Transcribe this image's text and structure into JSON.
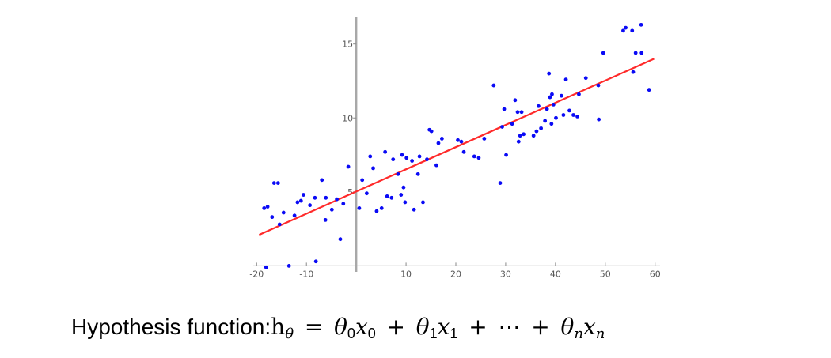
{
  "chart_data": {
    "type": "scatter",
    "title": "",
    "xlabel": "",
    "ylabel": "",
    "xlim": [
      -21,
      61
    ],
    "ylim": [
      -0.3,
      16.8
    ],
    "x_ticks": [
      {
        "value": -20,
        "label": "-20"
      },
      {
        "value": -10,
        "label": "-10"
      },
      {
        "value": 10,
        "label": "10"
      },
      {
        "value": 20,
        "label": "20"
      },
      {
        "value": 30,
        "label": "30"
      },
      {
        "value": 40,
        "label": "40"
      },
      {
        "value": 50,
        "label": "50"
      },
      {
        "value": 60,
        "label": "60"
      }
    ],
    "y_ticks": [
      {
        "value": 5,
        "label": "5"
      },
      {
        "value": 10,
        "label": "10"
      },
      {
        "value": 15,
        "label": "15"
      }
    ],
    "grid": false,
    "legend": "none",
    "series": [
      {
        "kind": "points",
        "color": "#0a0af5",
        "points": [
          [
            -18.5,
            3.9
          ],
          [
            -17.8,
            4.0
          ],
          [
            -16.9,
            3.3
          ],
          [
            -16.5,
            5.6
          ],
          [
            -15.7,
            5.6
          ],
          [
            -15.4,
            2.8
          ],
          [
            -14.6,
            3.6
          ],
          [
            -12.4,
            3.4
          ],
          [
            -11.8,
            4.3
          ],
          [
            -11.1,
            4.4
          ],
          [
            -10.6,
            4.8
          ],
          [
            -9.3,
            4.1
          ],
          [
            -8.3,
            4.6
          ],
          [
            -6.9,
            5.8
          ],
          [
            -6.1,
            4.6
          ],
          [
            -6.2,
            3.1
          ],
          [
            -4.9,
            3.8
          ],
          [
            -3.9,
            4.5
          ],
          [
            -3.2,
            1.8
          ],
          [
            -2.6,
            4.2
          ],
          [
            -1.6,
            6.7
          ],
          [
            -18.1,
            -0.1
          ],
          [
            -13.5,
            0.0
          ],
          [
            -8.1,
            0.3
          ],
          [
            0.6,
            3.9
          ],
          [
            1.2,
            5.8
          ],
          [
            2.1,
            4.9
          ],
          [
            2.8,
            7.4
          ],
          [
            3.4,
            6.6
          ],
          [
            4.1,
            3.7
          ],
          [
            5.1,
            3.9
          ],
          [
            5.8,
            7.7
          ],
          [
            6.2,
            4.7
          ],
          [
            7.1,
            4.6
          ],
          [
            7.4,
            7.2
          ],
          [
            8.4,
            6.2
          ],
          [
            9.0,
            4.8
          ],
          [
            9.2,
            7.5
          ],
          [
            9.5,
            5.3
          ],
          [
            9.8,
            4.3
          ],
          [
            10.1,
            7.3
          ],
          [
            11.2,
            7.1
          ],
          [
            11.6,
            3.8
          ],
          [
            12.4,
            6.2
          ],
          [
            12.7,
            7.4
          ],
          [
            13.4,
            4.3
          ],
          [
            14.2,
            7.2
          ],
          [
            14.7,
            9.2
          ],
          [
            15.1,
            9.1
          ],
          [
            16.1,
            6.8
          ],
          [
            16.5,
            8.3
          ],
          [
            17.2,
            8.6
          ],
          [
            20.4,
            8.5
          ],
          [
            21.1,
            8.4
          ],
          [
            21.6,
            7.7
          ],
          [
            23.7,
            7.4
          ],
          [
            24.6,
            7.3
          ],
          [
            25.7,
            8.6
          ],
          [
            27.6,
            12.2
          ],
          [
            28.9,
            5.6
          ],
          [
            29.3,
            9.4
          ],
          [
            29.7,
            10.6
          ],
          [
            30.1,
            7.5
          ],
          [
            31.3,
            9.6
          ],
          [
            31.9,
            11.2
          ],
          [
            32.4,
            10.4
          ],
          [
            32.6,
            8.4
          ],
          [
            32.9,
            8.8
          ],
          [
            33.2,
            10.4
          ],
          [
            33.6,
            8.9
          ],
          [
            35.6,
            8.8
          ],
          [
            36.2,
            9.1
          ],
          [
            36.6,
            10.8
          ],
          [
            37.1,
            9.3
          ],
          [
            37.9,
            9.8
          ],
          [
            38.3,
            10.6
          ],
          [
            38.7,
            13.0
          ],
          [
            38.9,
            11.4
          ],
          [
            39.2,
            9.6
          ],
          [
            39.3,
            11.6
          ],
          [
            39.6,
            10.9
          ],
          [
            40.1,
            10.0
          ],
          [
            41.2,
            11.5
          ],
          [
            41.6,
            10.2
          ],
          [
            42.1,
            12.6
          ],
          [
            42.8,
            10.5
          ],
          [
            43.6,
            10.2
          ],
          [
            44.4,
            10.1
          ],
          [
            44.7,
            11.6
          ],
          [
            46.1,
            12.7
          ],
          [
            48.6,
            12.2
          ],
          [
            48.7,
            9.9
          ],
          [
            49.6,
            14.4
          ],
          [
            53.6,
            15.9
          ],
          [
            54.1,
            16.1
          ],
          [
            55.4,
            15.9
          ],
          [
            55.6,
            13.1
          ],
          [
            56.1,
            14.4
          ],
          [
            57.2,
            16.3
          ],
          [
            57.3,
            14.4
          ],
          [
            58.8,
            11.9
          ]
        ]
      },
      {
        "kind": "line",
        "color": "#ff2a2a",
        "x": [
          -19.5,
          59.8
        ],
        "y": [
          2.1,
          14.0
        ]
      }
    ]
  },
  "caption": {
    "prefix": "Hypothesis function:",
    "h": "h",
    "h_sub": "θ",
    "eq": "=",
    "theta": "θ",
    "x": "x",
    "sub0": "0",
    "sub1": "1",
    "subn": "n",
    "plus": "+",
    "dots": "⋯"
  }
}
